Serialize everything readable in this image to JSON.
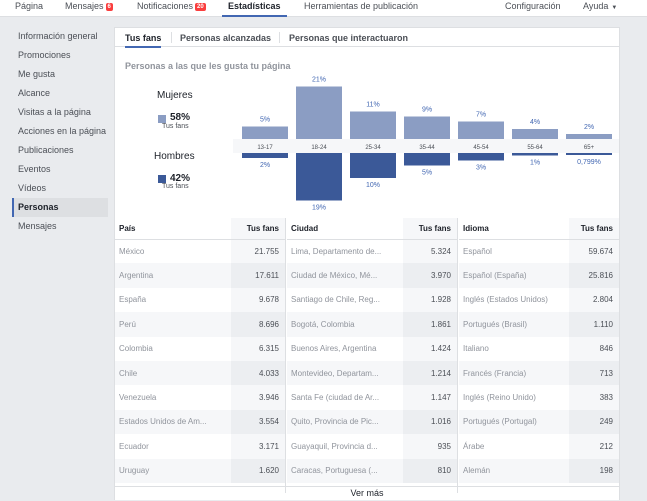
{
  "topnav": {
    "items": [
      {
        "label": "Página"
      },
      {
        "label": "Mensajes",
        "badge": "6"
      },
      {
        "label": "Notificaciones",
        "badge": "20"
      },
      {
        "label": "Estadísticas"
      },
      {
        "label": "Herramientas de publicación"
      }
    ],
    "settings": "Configuración",
    "help": "Ayuda"
  },
  "sidebar": {
    "items": [
      {
        "label": "Información general"
      },
      {
        "label": "Promociones"
      },
      {
        "label": "Me gusta"
      },
      {
        "label": "Alcance"
      },
      {
        "label": "Visitas a la página"
      },
      {
        "label": "Acciones en la página"
      },
      {
        "label": "Publicaciones"
      },
      {
        "label": "Eventos"
      },
      {
        "label": "Vídeos"
      },
      {
        "label": "Personas"
      },
      {
        "label": "Mensajes"
      }
    ],
    "active": "Personas"
  },
  "subtabs": [
    "Tus fans",
    "Personas alcanzadas",
    "Personas que interactuaron"
  ],
  "section_title": "Personas a las que les gusta tu página",
  "legend": {
    "women_label": "Mujeres",
    "women_pct": "58%",
    "women_sub": "Tus fans",
    "men_label": "Hombres",
    "men_pct": "42%",
    "men_sub": "Tus fans",
    "women_color": "#8b9dc3",
    "men_color": "#3b5998"
  },
  "chart_data": {
    "type": "bar",
    "categories": [
      "13-17",
      "18-24",
      "25-34",
      "35-44",
      "45-54",
      "55-64",
      "65+"
    ],
    "series": [
      {
        "name": "Mujeres",
        "values": [
          5,
          21,
          11,
          9,
          7,
          4,
          2
        ],
        "labels": [
          "5%",
          "21%",
          "11%",
          "9%",
          "7%",
          "4%",
          "2%"
        ]
      },
      {
        "name": "Hombres",
        "values": [
          2,
          19,
          10,
          5,
          3,
          1,
          0.799
        ],
        "labels": [
          "2%",
          "19%",
          "10%",
          "5%",
          "3%",
          "1%",
          "0,799%"
        ]
      }
    ]
  },
  "tables": [
    {
      "col1": "País",
      "col2": "Tus fans",
      "rows": [
        [
          "México",
          "21.755"
        ],
        [
          "Argentina",
          "17.611"
        ],
        [
          "España",
          "9.678"
        ],
        [
          "Perú",
          "8.696"
        ],
        [
          "Colombia",
          "6.315"
        ],
        [
          "Chile",
          "4.033"
        ],
        [
          "Venezuela",
          "3.946"
        ],
        [
          "Estados Unidos de Am...",
          "3.554"
        ],
        [
          "Ecuador",
          "3.171"
        ],
        [
          "Uruguay",
          "1.620"
        ]
      ]
    },
    {
      "col1": "Ciudad",
      "col2": "Tus fans",
      "rows": [
        [
          "Lima, Departamento de...",
          "5.324"
        ],
        [
          "Ciudad de México, Mé...",
          "3.970"
        ],
        [
          "Santiago de Chile, Reg...",
          "1.928"
        ],
        [
          "Bogotá, Colombia",
          "1.861"
        ],
        [
          "Buenos Aires, Argentina",
          "1.424"
        ],
        [
          "Montevideo, Departam...",
          "1.214"
        ],
        [
          "Santa Fe (ciudad de Ar...",
          "1.147"
        ],
        [
          "Quito, Provincia de Pic...",
          "1.016"
        ],
        [
          "Guayaquil, Provincia d...",
          "935"
        ],
        [
          "Caracas, Portuguesa (...",
          "810"
        ]
      ]
    },
    {
      "col1": "Idioma",
      "col2": "Tus fans",
      "rows": [
        [
          "Español",
          "59.674"
        ],
        [
          "Español (España)",
          "25.816"
        ],
        [
          "Inglés (Estados Unidos)",
          "2.804"
        ],
        [
          "Portugués (Brasil)",
          "1.110"
        ],
        [
          "Italiano",
          "846"
        ],
        [
          "Francés (Francia)",
          "713"
        ],
        [
          "Inglés (Reino Unido)",
          "383"
        ],
        [
          "Portugués (Portugal)",
          "249"
        ],
        [
          "Árabe",
          "212"
        ],
        [
          "Alemán",
          "198"
        ]
      ]
    }
  ],
  "see_more": "Ver más"
}
